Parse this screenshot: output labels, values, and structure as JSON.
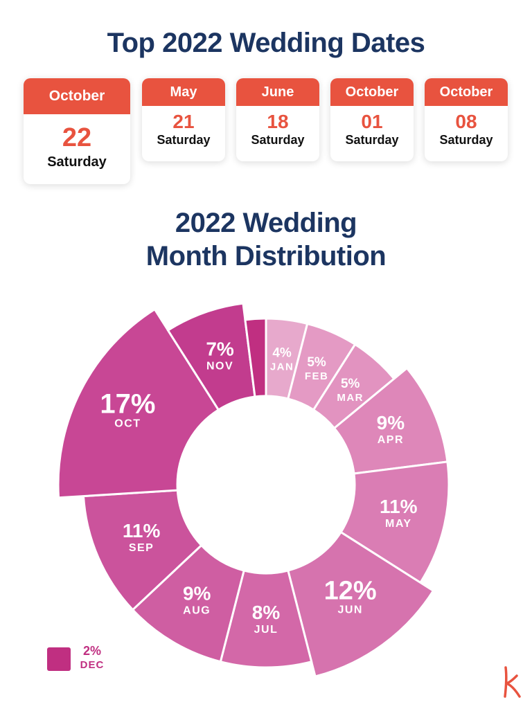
{
  "title": "Top 2022 Wedding Dates",
  "top_dates": [
    {
      "month": "October",
      "day": "22",
      "weekday": "Saturday"
    },
    {
      "month": "May",
      "day": "21",
      "weekday": "Saturday"
    },
    {
      "month": "June",
      "day": "18",
      "weekday": "Saturday"
    },
    {
      "month": "October",
      "day": "01",
      "weekday": "Saturday"
    },
    {
      "month": "October",
      "day": "08",
      "weekday": "Saturday"
    }
  ],
  "chart_data": {
    "type": "pie",
    "title": "2022 Wedding Month Distribution",
    "categories": [
      "JAN",
      "FEB",
      "MAR",
      "APR",
      "MAY",
      "JUN",
      "JUL",
      "AUG",
      "SEP",
      "OCT",
      "NOV",
      "DEC"
    ],
    "values": [
      4,
      5,
      5,
      9,
      11,
      12,
      8,
      9,
      11,
      17,
      7,
      2
    ],
    "labels": [
      "4%",
      "5%",
      "5%",
      "9%",
      "11%",
      "12%",
      "8%",
      "9%",
      "11%",
      "17%",
      "7%",
      "2%"
    ],
    "colors": [
      "#e7a9cc",
      "#e49ac4",
      "#e293c0",
      "#de87b9",
      "#da7db4",
      "#d673ae",
      "#d368a8",
      "#cf5ea2",
      "#cb539c",
      "#c84795",
      "#c23c8e",
      "#c02f81"
    ],
    "legend": {
      "label": "2%",
      "category": "DEC",
      "color": "#c02f81"
    }
  },
  "colors": {
    "navy": "#1c3561",
    "accent": "#e8533f"
  },
  "logo": {
    "icon": "k-logo-icon",
    "color": "#e8533f"
  }
}
